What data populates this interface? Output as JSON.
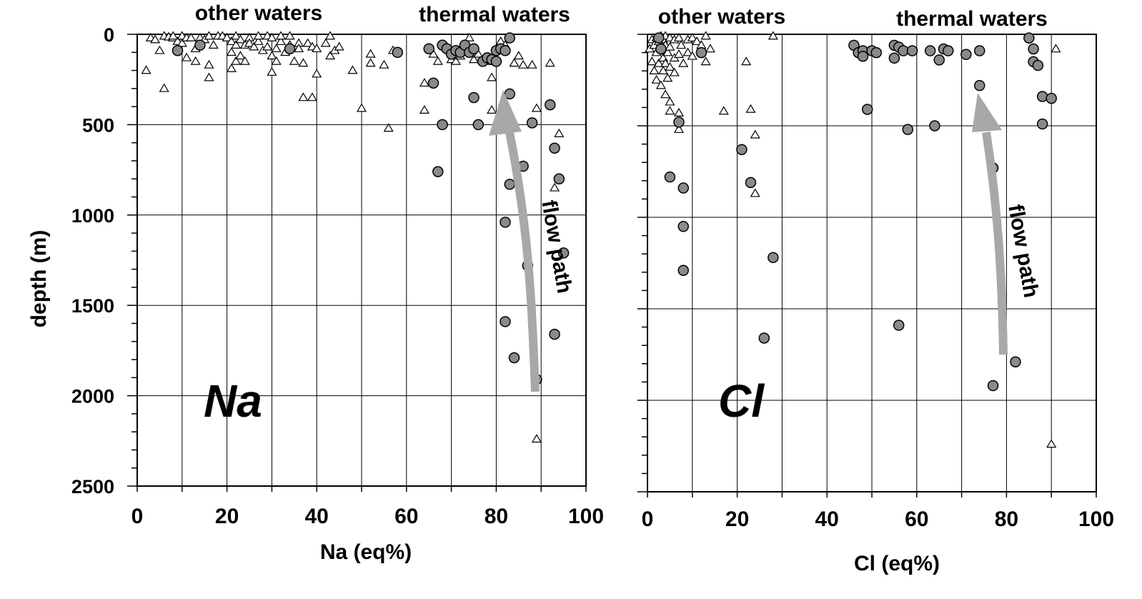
{
  "chart_data": [
    {
      "type": "scatter",
      "panel_label": "Na",
      "xlabel": "Na (eq%)",
      "ylabel": "depth (m)",
      "xlim": [
        0,
        100
      ],
      "ylim": [
        0,
        2500
      ],
      "y_inverted": true,
      "x_ticks": [
        "0",
        "20",
        "40",
        "60",
        "80",
        "100"
      ],
      "y_ticks": [
        "0",
        "500",
        "1000",
        "1500",
        "2000",
        "2500"
      ],
      "grid": true,
      "group_labels": [
        "other waters",
        "thermal waters"
      ],
      "annotation": "flow path",
      "series": [
        {
          "marker": "triangle",
          "points": [
            [
              2,
              200
            ],
            [
              3,
              20
            ],
            [
              4,
              30
            ],
            [
              5,
              90
            ],
            [
              6,
              300
            ],
            [
              6,
              10
            ],
            [
              7,
              15
            ],
            [
              8,
              20
            ],
            [
              8,
              10
            ],
            [
              9,
              40
            ],
            [
              10,
              50
            ],
            [
              10,
              10
            ],
            [
              11,
              20
            ],
            [
              11,
              130
            ],
            [
              12,
              20
            ],
            [
              13,
              150
            ],
            [
              13,
              80
            ],
            [
              14,
              20
            ],
            [
              15,
              30
            ],
            [
              16,
              10
            ],
            [
              16,
              170
            ],
            [
              16,
              240
            ],
            [
              17,
              60
            ],
            [
              18,
              10
            ],
            [
              19,
              10
            ],
            [
              20,
              20
            ],
            [
              21,
              40
            ],
            [
              21,
              100
            ],
            [
              21,
              190
            ],
            [
              22,
              10
            ],
            [
              22,
              60
            ],
            [
              22,
              150
            ],
            [
              23,
              30
            ],
            [
              23,
              120
            ],
            [
              24,
              60
            ],
            [
              24,
              150
            ],
            [
              25,
              20
            ],
            [
              25,
              50
            ],
            [
              26,
              70
            ],
            [
              27,
              40
            ],
            [
              27,
              10
            ],
            [
              28,
              90
            ],
            [
              29,
              10
            ],
            [
              29,
              70
            ],
            [
              30,
              20
            ],
            [
              30,
              120
            ],
            [
              30,
              210
            ],
            [
              31,
              80
            ],
            [
              31,
              150
            ],
            [
              32,
              40
            ],
            [
              32,
              10
            ],
            [
              33,
              100
            ],
            [
              34,
              10
            ],
            [
              34,
              60
            ],
            [
              35,
              150
            ],
            [
              36,
              50
            ],
            [
              36,
              80
            ],
            [
              37,
              160
            ],
            [
              37,
              350
            ],
            [
              38,
              50
            ],
            [
              39,
              70
            ],
            [
              39,
              350
            ],
            [
              40,
              80
            ],
            [
              40,
              220
            ],
            [
              42,
              50
            ],
            [
              43,
              10
            ],
            [
              43,
              120
            ],
            [
              44,
              90
            ],
            [
              45,
              70
            ],
            [
              48,
              200
            ],
            [
              50,
              410
            ],
            [
              52,
              160
            ],
            [
              52,
              110
            ],
            [
              55,
              170
            ],
            [
              56,
              520
            ],
            [
              57,
              90
            ],
            [
              64,
              270
            ],
            [
              64,
              420
            ],
            [
              66,
              110
            ],
            [
              67,
              150
            ],
            [
              69,
              80
            ],
            [
              70,
              140
            ],
            [
              71,
              150
            ],
            [
              72,
              120
            ],
            [
              73,
              100
            ],
            [
              74,
              20
            ],
            [
              75,
              140
            ],
            [
              76,
              110
            ],
            [
              78,
              150
            ],
            [
              79,
              240
            ],
            [
              79,
              420
            ],
            [
              81,
              40
            ],
            [
              82,
              60
            ],
            [
              84,
              160
            ],
            [
              85,
              120
            ],
            [
              86,
              170
            ],
            [
              88,
              170
            ],
            [
              89,
              410
            ],
            [
              89,
              2240
            ],
            [
              92,
              160
            ],
            [
              93,
              850
            ],
            [
              94,
              550
            ]
          ]
        },
        {
          "marker": "circle",
          "points": [
            [
              9,
              90
            ],
            [
              14,
              60
            ],
            [
              34,
              80
            ],
            [
              58,
              100
            ],
            [
              65,
              80
            ],
            [
              66,
              270
            ],
            [
              67,
              760
            ],
            [
              68,
              60
            ],
            [
              68,
              500
            ],
            [
              69,
              80
            ],
            [
              70,
              110
            ],
            [
              71,
              90
            ],
            [
              72,
              100
            ],
            [
              73,
              60
            ],
            [
              74,
              100
            ],
            [
              75,
              80
            ],
            [
              75,
              350
            ],
            [
              76,
              500
            ],
            [
              77,
              150
            ],
            [
              78,
              130
            ],
            [
              79,
              140
            ],
            [
              80,
              90
            ],
            [
              80,
              150
            ],
            [
              81,
              80
            ],
            [
              82,
              90
            ],
            [
              82,
              1040
            ],
            [
              82,
              1590
            ],
            [
              83,
              20
            ],
            [
              83,
              330
            ],
            [
              83,
              830
            ],
            [
              83,
              520
            ],
            [
              84,
              1790
            ],
            [
              86,
              730
            ],
            [
              87,
              1280
            ],
            [
              88,
              490
            ],
            [
              89,
              1910
            ],
            [
              92,
              390
            ],
            [
              93,
              1660
            ],
            [
              93,
              630
            ],
            [
              94,
              800
            ],
            [
              95,
              1210
            ]
          ]
        }
      ]
    },
    {
      "type": "scatter",
      "panel_label": "Cl",
      "xlabel": "Cl (eq%)",
      "ylabel": "depth (m)",
      "xlim": [
        0,
        100
      ],
      "ylim": [
        0,
        2500
      ],
      "y_inverted": true,
      "x_ticks": [
        "0",
        "20",
        "40",
        "60",
        "80",
        "100"
      ],
      "y_ticks": [
        "0",
        "500",
        "1000",
        "1500",
        "2000",
        "2500"
      ],
      "grid": true,
      "group_labels": [
        "other waters",
        "thermal waters"
      ],
      "annotation": "flow path",
      "series": [
        {
          "marker": "triangle",
          "points": [
            [
              0.5,
              80
            ],
            [
              1,
              30
            ],
            [
              1,
              150
            ],
            [
              1.5,
              60
            ],
            [
              1.5,
              200
            ],
            [
              2,
              20
            ],
            [
              2,
              100
            ],
            [
              2,
              250
            ],
            [
              2.5,
              40
            ],
            [
              2.5,
              160
            ],
            [
              3,
              10
            ],
            [
              3,
              80
            ],
            [
              3,
              280
            ],
            [
              3.5,
              30
            ],
            [
              3.5,
              130
            ],
            [
              3.5,
              200
            ],
            [
              4,
              60
            ],
            [
              4,
              10
            ],
            [
              4,
              160
            ],
            [
              4,
              330
            ],
            [
              4.5,
              100
            ],
            [
              4.5,
              240
            ],
            [
              5,
              20
            ],
            [
              5,
              70
            ],
            [
              5,
              180
            ],
            [
              5,
              370
            ],
            [
              5,
              420
            ],
            [
              6,
              30
            ],
            [
              6,
              130
            ],
            [
              6,
              210
            ],
            [
              7,
              20
            ],
            [
              7,
              110
            ],
            [
              7,
              430
            ],
            [
              7,
              520
            ],
            [
              7.5,
              60
            ],
            [
              8,
              160
            ],
            [
              9,
              30
            ],
            [
              9,
              100
            ],
            [
              10,
              20
            ],
            [
              10,
              120
            ],
            [
              11,
              40
            ],
            [
              12,
              60
            ],
            [
              13,
              10
            ],
            [
              13,
              150
            ],
            [
              14,
              80
            ],
            [
              17,
              420
            ],
            [
              22,
              150
            ],
            [
              23,
              410
            ],
            [
              24,
              550
            ],
            [
              24,
              870
            ],
            [
              28,
              10
            ],
            [
              91,
              80
            ],
            [
              90,
              2240
            ]
          ]
        },
        {
          "marker": "circle",
          "points": [
            [
              2.5,
              20
            ],
            [
              3,
              80
            ],
            [
              5,
              780
            ],
            [
              7,
              480
            ],
            [
              8,
              840
            ],
            [
              8,
              1050
            ],
            [
              8,
              1290
            ],
            [
              12,
              100
            ],
            [
              21,
              630
            ],
            [
              23,
              810
            ],
            [
              26,
              1660
            ],
            [
              28,
              1220
            ],
            [
              46,
              60
            ],
            [
              47,
              100
            ],
            [
              48,
              90
            ],
            [
              48,
              120
            ],
            [
              49,
              410
            ],
            [
              50,
              90
            ],
            [
              51,
              100
            ],
            [
              55,
              130
            ],
            [
              55,
              60
            ],
            [
              56,
              70
            ],
            [
              57,
              90
            ],
            [
              58,
              520
            ],
            [
              59,
              90
            ],
            [
              63,
              90
            ],
            [
              64,
              500
            ],
            [
              65,
              140
            ],
            [
              66,
              80
            ],
            [
              67,
              90
            ],
            [
              71,
              110
            ],
            [
              74,
              90
            ],
            [
              74,
              280
            ],
            [
              77,
              730
            ],
            [
              77,
              1920
            ],
            [
              82,
              1790
            ],
            [
              85,
              20
            ],
            [
              86,
              80
            ],
            [
              86,
              150
            ],
            [
              87,
              170
            ],
            [
              88,
              340
            ],
            [
              88,
              490
            ],
            [
              90,
              350
            ],
            [
              56,
              1590
            ]
          ]
        }
      ]
    }
  ]
}
